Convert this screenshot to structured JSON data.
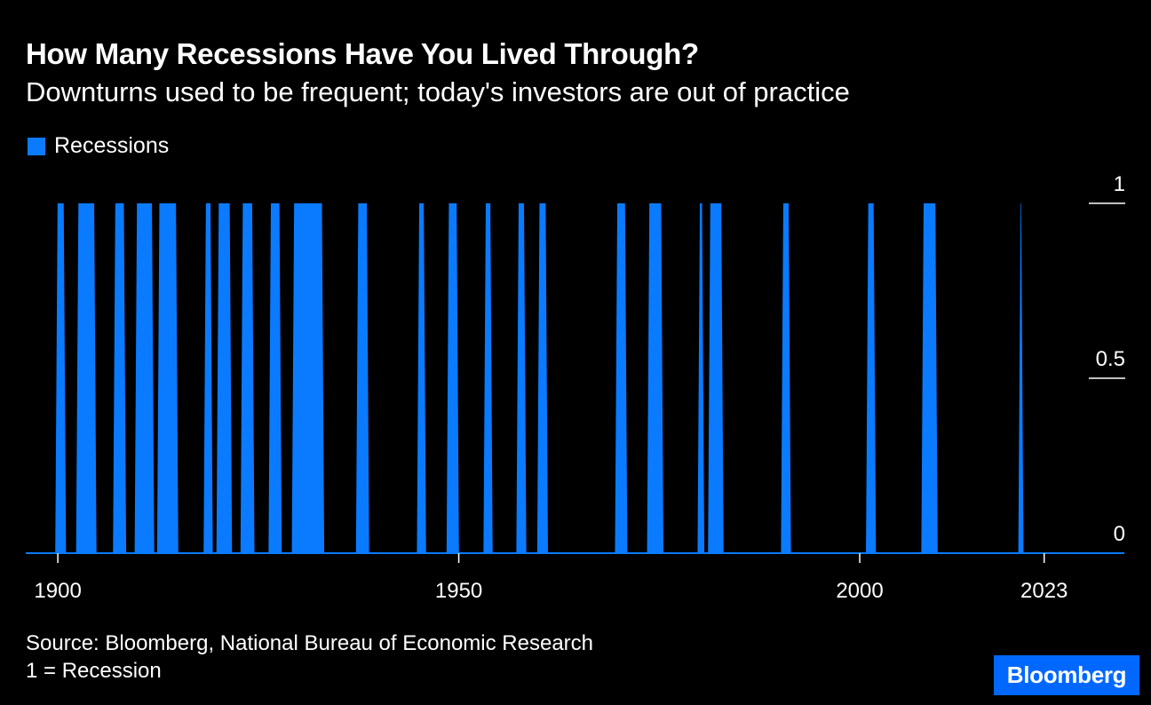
{
  "title": "How Many Recessions Have You Lived Through?",
  "subtitle": "Downturns used to be frequent; today's investors are out of practice",
  "colors": {
    "background": "#000000",
    "series": "#0a7bff",
    "brand": "#0068ff"
  },
  "footer": {
    "source": "Source: Bloomberg, National Bureau of Economic Research",
    "note": "1 = Recession"
  },
  "brand": "Bloomberg",
  "chart_data": {
    "type": "area",
    "title": "How Many Recessions Have You Lived Through?",
    "legend": {
      "label": "Recessions",
      "placement": "top-left"
    },
    "xlabel": "",
    "ylabel": "",
    "xlim": [
      1896,
      2033
    ],
    "ylim": [
      0,
      1
    ],
    "x_ticks": [
      1900,
      1950,
      2000,
      2023
    ],
    "y_ticks": [
      {
        "value": 1,
        "label": "1"
      },
      {
        "value": 0.5,
        "label": "0.5"
      },
      {
        "value": 0,
        "label": "0"
      }
    ],
    "grid": false,
    "series": [
      {
        "name": "Recessions",
        "value": 1,
        "periods": [
          [
            1899.9,
            1900.8
          ],
          [
            1902.5,
            1904.6
          ],
          [
            1907.1,
            1908.3
          ],
          [
            1909.8,
            1911.8
          ],
          [
            1912.6,
            1914.8
          ],
          [
            1918.4,
            1919.1
          ],
          [
            1920.0,
            1921.5
          ],
          [
            1923.0,
            1924.3
          ],
          [
            1926.5,
            1927.7
          ],
          [
            1929.4,
            1933.0
          ],
          [
            1937.4,
            1938.6
          ],
          [
            1945.0,
            1945.7
          ],
          [
            1948.7,
            1949.8
          ],
          [
            1953.3,
            1954.0
          ],
          [
            1957.4,
            1958.2
          ],
          [
            1960.0,
            1960.9
          ],
          [
            1969.7,
            1970.8
          ],
          [
            1973.7,
            1975.3
          ],
          [
            1980.0,
            1980.4
          ],
          [
            1981.3,
            1982.8
          ],
          [
            1990.4,
            1991.2
          ],
          [
            2001.0,
            2001.8
          ],
          [
            2007.9,
            2009.5
          ],
          [
            2020.0,
            2020.2
          ]
        ]
      }
    ]
  }
}
